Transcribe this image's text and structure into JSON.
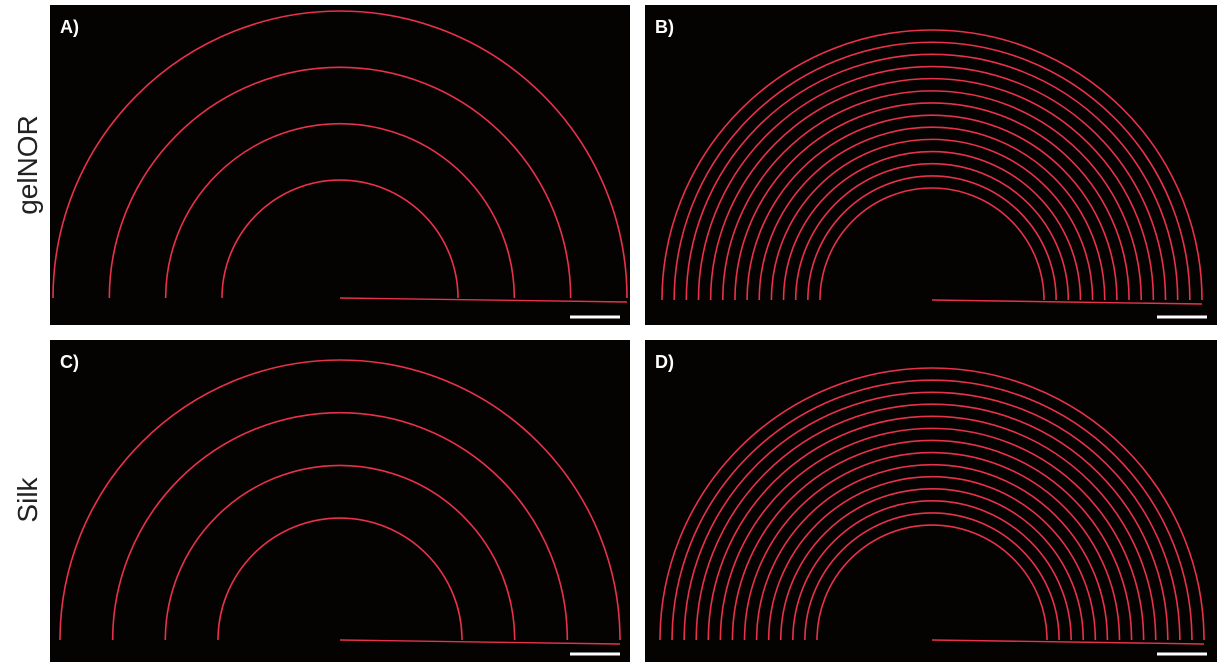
{
  "rows": [
    "gelNOR",
    "Silk"
  ],
  "panels": [
    {
      "label": "A)"
    },
    {
      "label": "B)"
    },
    {
      "label": "C)"
    },
    {
      "label": "D)"
    }
  ]
}
